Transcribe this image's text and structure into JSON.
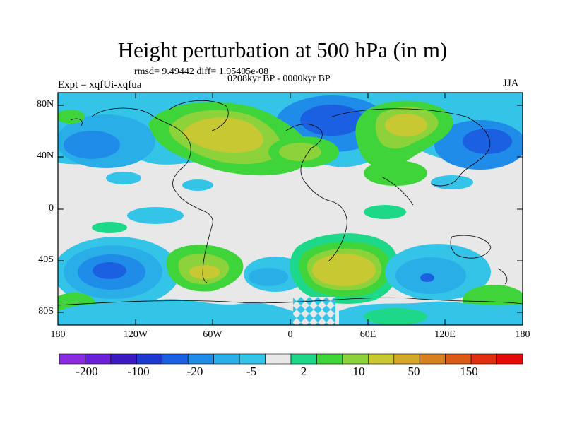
{
  "title": "Height perturbation at 500 hPa (in m)",
  "stats_line": "rmsd= 9.49442 diff= 1.95405e-08",
  "period_line": "0208kyr BP - 0000kyr BP",
  "experiment_label": "Expt = xqfUi-xqfua",
  "season_label": "JJA",
  "lat_ticks": [
    "80N",
    "40N",
    "0",
    "40S",
    "80S"
  ],
  "lon_ticks": [
    "180",
    "120W",
    "60W",
    "0",
    "60E",
    "120E",
    "180"
  ],
  "colorbar": {
    "colors": [
      "#8a2be2",
      "#6a1fd8",
      "#3a19c0",
      "#1c3ad0",
      "#1a60e0",
      "#1e8ce8",
      "#2aaee8",
      "#34c4e8",
      "#e8e8e8",
      "#1ed88a",
      "#3ed43a",
      "#8cd23a",
      "#c8c832",
      "#d4a828",
      "#d88020",
      "#dc5a18",
      "#e02e10",
      "#e40a0a"
    ],
    "labels": [
      "-200",
      "-100",
      "-20",
      "-5",
      "2",
      "10",
      "50",
      "150"
    ]
  },
  "chart_data": {
    "type": "heatmap",
    "title": "Height perturbation at 500 hPa (in m)",
    "variable": "500 hPa height perturbation",
    "units": "m",
    "x_axis": {
      "labels": [
        "180",
        "120W",
        "60W",
        "0",
        "60E",
        "120E",
        "180"
      ],
      "range": [
        -180,
        180
      ]
    },
    "y_axis": {
      "labels": [
        "80N",
        "40N",
        "0",
        "40S",
        "80S"
      ],
      "range": [
        -90,
        90
      ]
    },
    "levels_labeled": [
      -200,
      -100,
      -20,
      -5,
      2,
      10,
      50,
      150
    ],
    "season": "JJA",
    "experiment": "xqfUi-xqfua",
    "rmsd": 9.49442,
    "diff": 1.95405e-08
  }
}
